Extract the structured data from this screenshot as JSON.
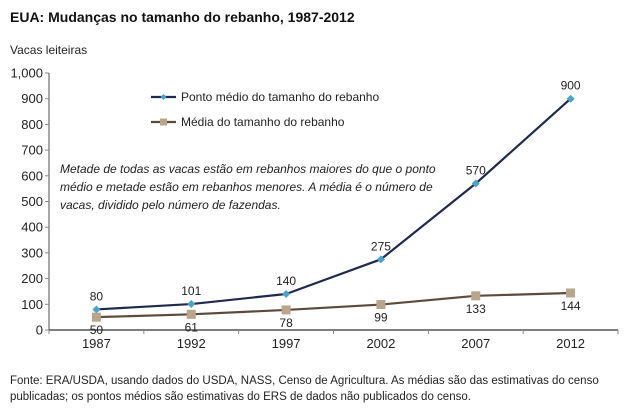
{
  "chart_data": {
    "type": "line",
    "title": "EUA: Mudanças no tamanho do rebanho, 1987-2012",
    "ylabel": "Vacas leiteiras",
    "xlabel": "",
    "categories": [
      "1987",
      "1992",
      "1997",
      "2002",
      "2007",
      "2012"
    ],
    "ylim": [
      0,
      1000
    ],
    "yticks": [
      0,
      100,
      200,
      300,
      400,
      500,
      600,
      700,
      800,
      900,
      1000
    ],
    "ytick_labels": [
      "0",
      "100",
      "200",
      "300",
      "400",
      "500",
      "600",
      "700",
      "800",
      "900",
      "1,000"
    ],
    "grid": false,
    "legend_position": "top-center",
    "series": [
      {
        "name": "Ponto médio do tamanho do rebanho",
        "values": [
          80,
          101,
          140,
          275,
          570,
          900
        ],
        "labels": [
          "80",
          "101",
          "140",
          "275",
          "570",
          "900"
        ],
        "line_color": "#1f2a4d",
        "marker_color": "#4aa3c8",
        "marker": "diamond",
        "label_position": "above"
      },
      {
        "name": "Média do tamanho do rebanho",
        "values": [
          50,
          61,
          78,
          99,
          133,
          144
        ],
        "labels": [
          "50",
          "61",
          "78",
          "99",
          "133",
          "144"
        ],
        "line_color": "#5e4a3a",
        "marker_color": "#b8a58c",
        "marker": "square",
        "label_position": "below"
      }
    ],
    "annotation": "Metade de todas as vacas estão em rebanhos maiores do que o ponto médio e metade estão em rebanhos menores. A média é o número de vacas, dividido pelo número de fazendas."
  },
  "source": "Fonte: ERA/USDA, usando dados do USDA, NASS, Censo de Agricultura. As médias são das estimativas do censo publicadas; os pontos médios são estimativas do ERS de dados não publicados do censo.",
  "colors": {
    "axis": "#888888",
    "text": "#222222"
  }
}
